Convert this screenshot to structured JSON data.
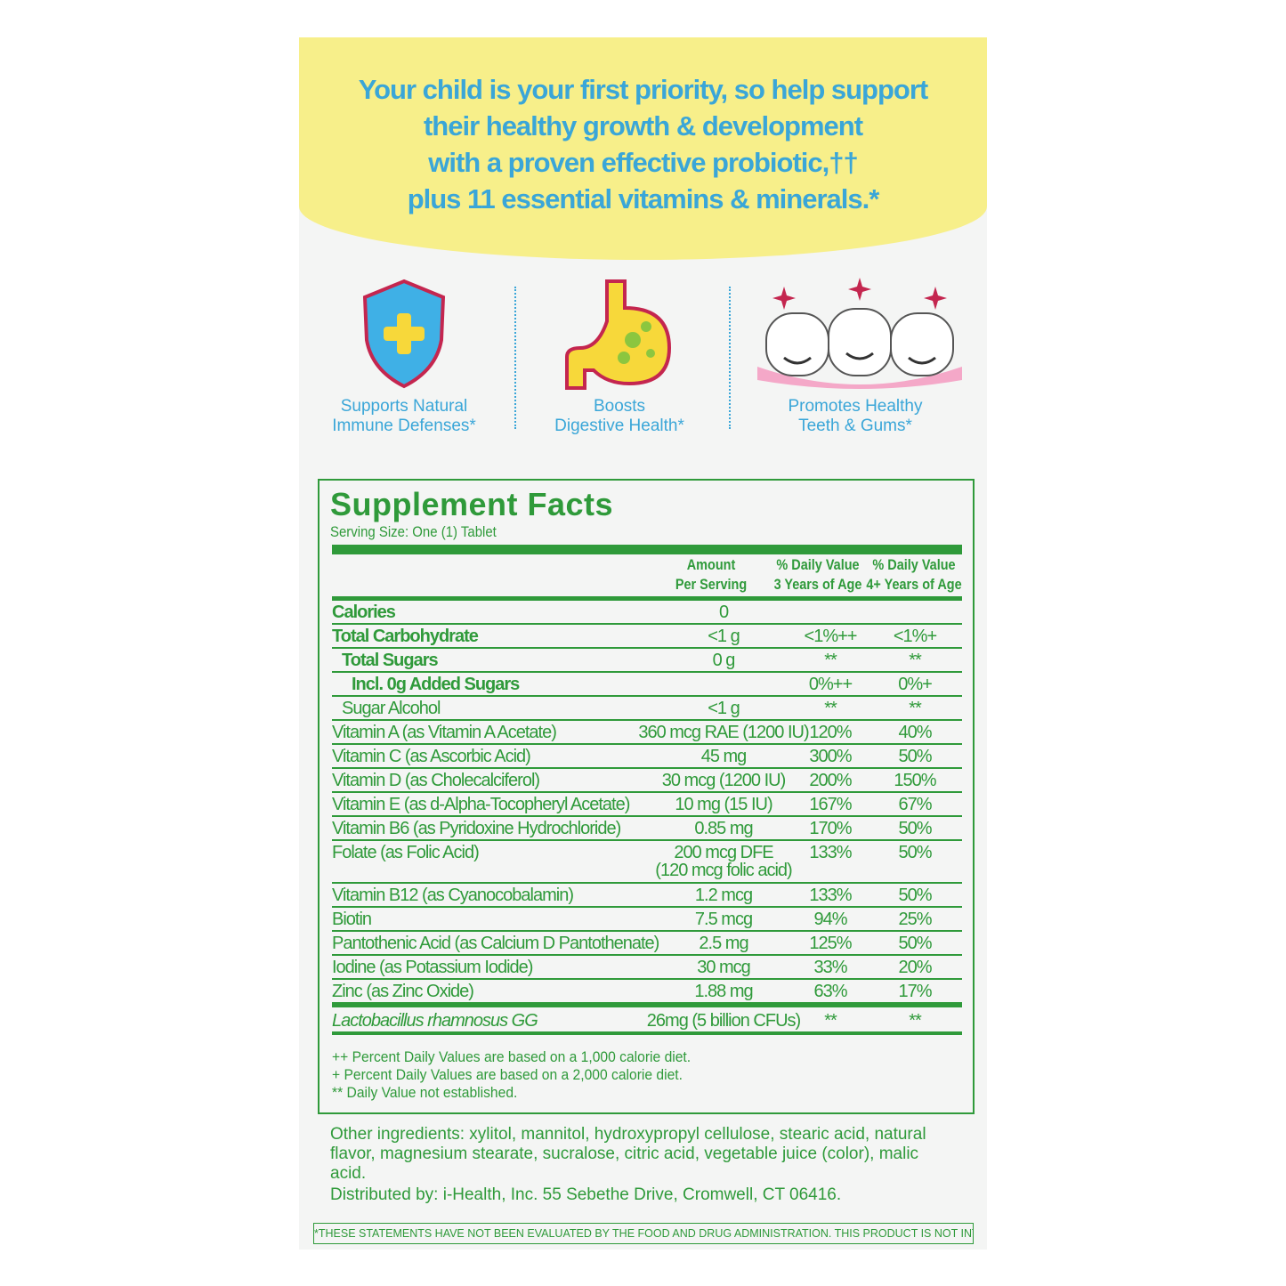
{
  "headline": [
    "Your child is your first priority, so help support",
    "their healthy growth & development",
    "with a proven effective probiotic,††",
    "plus 11 essential vitamins & minerals.*"
  ],
  "benefits": [
    {
      "icon": "shield-plus-icon",
      "line1": "Supports Natural",
      "line2": "Immune Defenses*"
    },
    {
      "icon": "stomach-icon",
      "line1": "Boosts",
      "line2": "Digestive Health*"
    },
    {
      "icon": "smiling-teeth-icon",
      "line1": "Promotes Healthy",
      "line2": "Teeth & Gums*"
    }
  ],
  "facts": {
    "title": "Supplement Facts",
    "serving": "Serving Size: One (1) Tablet",
    "headers": {
      "amount1": "Amount",
      "amount2": "Per Serving",
      "dv3a": "% Daily Value",
      "dv3b": "3 Years of Age",
      "dv4a": "% Daily Value",
      "dv4b": "4+ Years of Age"
    },
    "rows": [
      {
        "name": "Calories",
        "amount": "0",
        "dv3": "",
        "dv4": "",
        "bold": true,
        "indent": 0
      },
      {
        "name": "Total Carbohydrate",
        "amount": "<1 g",
        "dv3": "<1%++",
        "dv4": "<1%+",
        "bold": true,
        "indent": 0
      },
      {
        "name": "Total Sugars",
        "amount": "0 g",
        "dv3": "**",
        "dv4": "**",
        "bold": true,
        "indent": 1
      },
      {
        "name": "Incl. 0g Added Sugars",
        "amount": "",
        "dv3": "0%++",
        "dv4": "0%+",
        "bold": true,
        "indent": 2
      },
      {
        "name": "Sugar Alcohol",
        "amount": "<1 g",
        "dv3": "**",
        "dv4": "**",
        "bold": false,
        "indent": 1
      },
      {
        "name": "Vitamin A (as Vitamin A Acetate)",
        "amount": "360 mcg RAE (1200 IU)",
        "dv3": "120%",
        "dv4": "40%"
      },
      {
        "name": "Vitamin C (as Ascorbic Acid)",
        "amount": "45 mg",
        "dv3": "300%",
        "dv4": "50%"
      },
      {
        "name": "Vitamin D (as Cholecalciferol)",
        "amount": "30 mcg (1200 IU)",
        "dv3": "200%",
        "dv4": "150%"
      },
      {
        "name": "Vitamin E (as d-Alpha-Tocopheryl Acetate)",
        "amount": "10 mg (15 IU)",
        "dv3": "167%",
        "dv4": "67%"
      },
      {
        "name": "Vitamin B6 (as Pyridoxine Hydrochloride)",
        "amount": "0.85 mg",
        "dv3": "170%",
        "dv4": "50%"
      },
      {
        "name": "Folate (as Folic Acid)",
        "amount": "200 mcg DFE",
        "amount2": "(120 mcg folic acid)",
        "dv3": "133%",
        "dv4": "50%",
        "tall": true
      },
      {
        "name": "Vitamin B12 (as Cyanocobalamin)",
        "amount": "1.2 mcg",
        "dv3": "133%",
        "dv4": "50%"
      },
      {
        "name": "Biotin",
        "amount": "7.5 mcg",
        "dv3": "94%",
        "dv4": "25%"
      },
      {
        "name": "Pantothenic Acid (as Calcium D Pantothenate)",
        "amount": "2.5 mg",
        "dv3": "125%",
        "dv4": "50%"
      },
      {
        "name": "Iodine (as Potassium Iodide)",
        "amount": "30 mcg",
        "dv3": "33%",
        "dv4": "20%"
      },
      {
        "name": "Zinc (as Zinc Oxide)",
        "amount": "1.88 mg",
        "dv3": "63%",
        "dv4": "17%"
      },
      {
        "name": "Lactobacillus rhamnosus GG",
        "amount": "26mg (5 billion CFUs)",
        "dv3": "**",
        "dv4": "**",
        "italic": true
      }
    ],
    "footnotes": [
      "++ Percent Daily Values are based on a 1,000 calorie diet.",
      "+  Percent Daily Values are based on a 2,000 calorie diet.",
      "** Daily Value not established."
    ]
  },
  "other_label": "Other ingredients:",
  "other": " xylitol, mannitol, hydroxypropyl cellulose, stearic acid, natural flavor, magnesium stearate, sucralose, citric acid, vegetable juice (color), malic acid.",
  "distributed": "Distributed by: i-Health, Inc. 55 Sebethe Drive, Cromwell, CT 06416.",
  "disclaimer": "*THESE STATEMENTS HAVE NOT BEEN EVALUATED BY THE FOOD AND DRUG ADMINISTRATION. THIS PRODUCT IS NOT INTENDED TO DIAGNOSE, TREAT, CURE OR PREVENT ANY DISEASE.",
  "colors": {
    "green": "#2f9a3a",
    "blue": "#3aa6d8",
    "yellow": "#f7ef8a"
  }
}
